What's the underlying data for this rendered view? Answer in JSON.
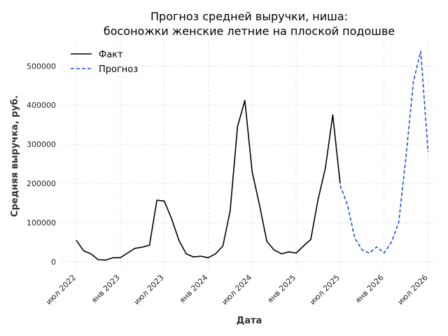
{
  "chart_data": {
    "type": "line",
    "title_lines": [
      "Прогноз средней выручки, ниша:",
      "босоножки женские летние на плоской подошве"
    ],
    "xlabel": "Дата",
    "ylabel": "Средняя выручка, руб.",
    "ylim": [
      -20000,
      565000
    ],
    "yticks": [
      {
        "value": 0,
        "label": "0"
      },
      {
        "value": 100000,
        "label": "100000"
      },
      {
        "value": 200000,
        "label": "200000"
      },
      {
        "value": 300000,
        "label": "300000"
      },
      {
        "value": 400000,
        "label": "400000"
      },
      {
        "value": 500000,
        "label": "500000"
      }
    ],
    "xticks": [
      {
        "value": "2022-07",
        "label": "июл 2022"
      },
      {
        "value": "2023-01",
        "label": "янв 2023"
      },
      {
        "value": "2023-07",
        "label": "июл 2023"
      },
      {
        "value": "2024-01",
        "label": "янв 2024"
      },
      {
        "value": "2024-07",
        "label": "июл 2024"
      },
      {
        "value": "2025-01",
        "label": "янв 2025"
      },
      {
        "value": "2025-07",
        "label": "июл 2025"
      },
      {
        "value": "2026-01",
        "label": "янв 2026"
      },
      {
        "value": "2026-07",
        "label": "июл 2026"
      }
    ],
    "xlim": [
      "2022-05",
      "2026-08"
    ],
    "grid": true,
    "legend_position": "top-left",
    "series": [
      {
        "name": "Факт",
        "color": "#000000",
        "style": "solid",
        "x": [
          "2022-07",
          "2022-08",
          "2022-09",
          "2022-10",
          "2022-11",
          "2022-12",
          "2023-01",
          "2023-02",
          "2023-03",
          "2023-04",
          "2023-05",
          "2023-06",
          "2023-07",
          "2023-08",
          "2023-09",
          "2023-10",
          "2023-11",
          "2023-12",
          "2024-01",
          "2024-02",
          "2024-03",
          "2024-04",
          "2024-05",
          "2024-06",
          "2024-07",
          "2024-08",
          "2024-09",
          "2024-10",
          "2024-11",
          "2024-12",
          "2025-01",
          "2025-02",
          "2025-03",
          "2025-04",
          "2025-05",
          "2025-06",
          "2025-07"
        ],
        "y": [
          55000,
          28000,
          20000,
          5000,
          4000,
          10000,
          10000,
          22000,
          34000,
          37000,
          42000,
          157000,
          155000,
          110000,
          55000,
          20000,
          12000,
          14000,
          10000,
          20000,
          40000,
          130000,
          345000,
          412000,
          230000,
          145000,
          52000,
          30000,
          20000,
          25000,
          22000,
          40000,
          57000,
          160000,
          240000,
          375000,
          200000
        ]
      },
      {
        "name": "Прогноз",
        "color": "#1f4fd1",
        "style": "dashed",
        "x": [
          "2025-07",
          "2025-08",
          "2025-09",
          "2025-10",
          "2025-11",
          "2025-12",
          "2026-01",
          "2026-02",
          "2026-03",
          "2026-04",
          "2026-05",
          "2026-06",
          "2026-07"
        ],
        "y": [
          195000,
          145000,
          60000,
          30000,
          22000,
          38000,
          22000,
          50000,
          100000,
          270000,
          460000,
          538000,
          280000
        ]
      }
    ]
  }
}
